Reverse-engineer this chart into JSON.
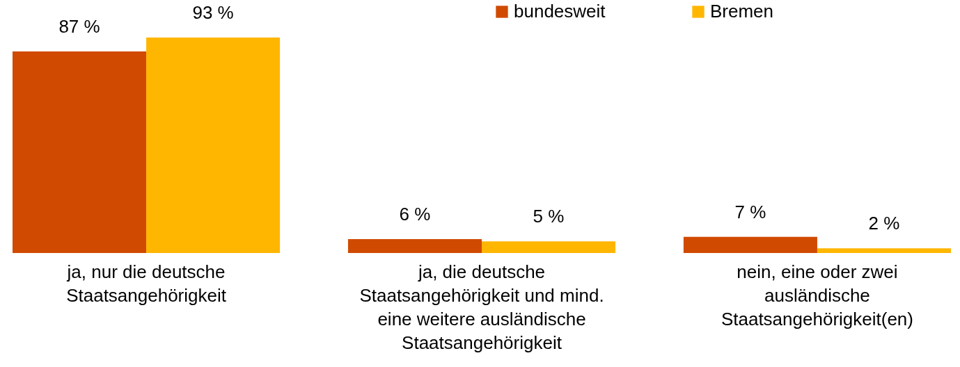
{
  "chart_data": {
    "type": "bar",
    "categories": [
      "ja, nur die deutsche Staatsangehörigkeit",
      "ja, die deutsche Staatsangehörigkeit und mind. eine weitere ausländische Staatsangehörigkeit",
      "nein, eine oder zwei ausländische Staatsangehörigkeit(en)"
    ],
    "series": [
      {
        "name": "bundesweit",
        "color": "#d04a02",
        "values": [
          87,
          6,
          7
        ],
        "value_labels": [
          "87 %",
          "6 %",
          "7 %"
        ]
      },
      {
        "name": "Bremen",
        "color": "#ffb600",
        "values": [
          93,
          5,
          2
        ],
        "value_labels": [
          "93 %",
          "5 %",
          "2 %"
        ]
      }
    ],
    "legend": "top"
  }
}
